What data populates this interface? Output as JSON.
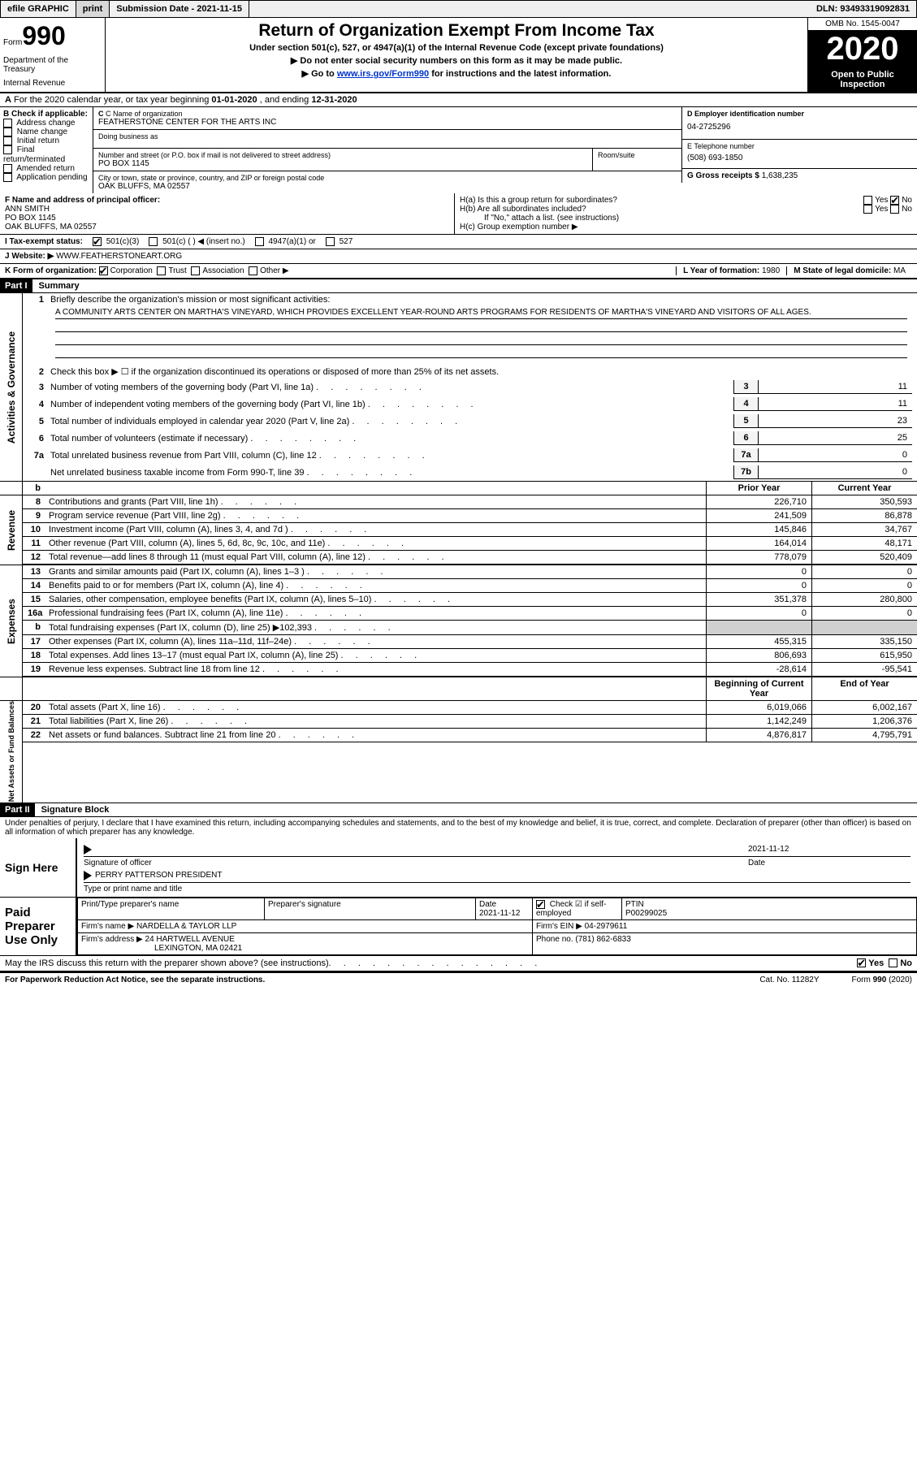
{
  "top_bar": {
    "efile": "efile GRAPHIC",
    "print": "print",
    "sub_date_label": "Submission Date - ",
    "sub_date": "2021-11-15",
    "dln_label": "DLN: ",
    "dln": "93493319092831"
  },
  "header": {
    "form_label": "Form",
    "form_num": "990",
    "dept1": "Department of the Treasury",
    "dept2": "Internal Revenue",
    "title": "Return of Organization Exempt From Income Tax",
    "subtitle": "Under section 501(c), 527, or 4947(a)(1) of the Internal Revenue Code (except private foundations)",
    "warn1": "Do not enter social security numbers on this form as it may be made public.",
    "warn2_a": "Go to ",
    "warn2_link": "www.irs.gov/Form990",
    "warn2_b": " for instructions and the latest information.",
    "omb": "OMB No. 1545-0047",
    "year": "2020",
    "inspect": "Open to Public Inspection"
  },
  "line_a": {
    "prefix": "A",
    "text_a": "For the 2020 calendar year, or tax year beginning ",
    "begin": "01-01-2020",
    "text_b": "  , and ending ",
    "end": "12-31-2020"
  },
  "block_b": {
    "header": "B Check if applicable:",
    "opts": [
      "Address change",
      "Name change",
      "Initial return",
      "Final return/terminated",
      "Amended return",
      "Application pending"
    ],
    "c_label": "C Name of organization",
    "c_name": "FEATHERSTONE CENTER FOR THE ARTS INC",
    "dba_label": "Doing business as",
    "addr_label": "Number and street (or P.O. box if mail is not delivered to street address)",
    "room_label": "Room/suite",
    "addr": "PO BOX 1145",
    "city_label": "City or town, state or province, country, and ZIP or foreign postal code",
    "city": "OAK BLUFFS, MA  02557",
    "d_label": "D Employer identification number",
    "d_val": "04-2725296",
    "e_label": "E Telephone number",
    "e_val": "(508) 693-1850",
    "g_label": "G Gross receipts $ ",
    "g_val": "1,638,235"
  },
  "block_f": {
    "f_label": "F Name and address of principal officer:",
    "f_name": "ANN SMITH",
    "f_addr1": "PO BOX 1145",
    "f_addr2": "OAK BLUFFS, MA  02557",
    "ha_label": "H(a)  Is this a group return for subordinates?",
    "hb_label": "H(b)  Are all subordinates included?",
    "h_note": "If \"No,\" attach a list. (see instructions)",
    "hc_label": "H(c)  Group exemption number ▶",
    "yes": "Yes",
    "no": "No"
  },
  "row_i": {
    "label": "I  Tax-exempt status:",
    "opts": [
      "501(c)(3)",
      "501(c) (  ) ◀ (insert no.)",
      "4947(a)(1) or",
      "527"
    ]
  },
  "row_j": {
    "label": "J  Website: ▶",
    "val": "  WWW.FEATHERSTONEART.ORG"
  },
  "row_k": {
    "label": "K Form of organization:",
    "opts": [
      "Corporation",
      "Trust",
      "Association",
      "Other ▶"
    ],
    "l_label": "L Year of formation: ",
    "l_val": "1980",
    "m_label": "M State of legal domicile: ",
    "m_val": "MA"
  },
  "part1": {
    "tag": "Part I",
    "title": "Summary",
    "l1a": "Briefly describe the organization's mission or most significant activities:",
    "l1b": "A COMMUNITY ARTS CENTER ON MARTHA'S VINEYARD, WHICH PROVIDES EXCELLENT YEAR-ROUND ARTS PROGRAMS FOR RESIDENTS OF MARTHA'S VINEYARD AND VISITORS OF ALL AGES.",
    "l2": "Check this box ▶ ☐  if the organization discontinued its operations or disposed of more than 25% of its net assets.",
    "rows_simple": [
      {
        "n": "3",
        "t": "Number of voting members of the governing body (Part VI, line 1a)",
        "k": "3",
        "v": "11"
      },
      {
        "n": "4",
        "t": "Number of independent voting members of the governing body (Part VI, line 1b)",
        "k": "4",
        "v": "11"
      },
      {
        "n": "5",
        "t": "Total number of individuals employed in calendar year 2020 (Part V, line 2a)",
        "k": "5",
        "v": "23"
      },
      {
        "n": "6",
        "t": "Total number of volunteers (estimate if necessary)",
        "k": "6",
        "v": "25"
      },
      {
        "n": "7a",
        "t": "Total unrelated business revenue from Part VIII, column (C), line 12",
        "k": "7a",
        "v": "0"
      },
      {
        "n": "",
        "t": "Net unrelated business taxable income from Form 990-T, line 39",
        "k": "7b",
        "v": "0"
      }
    ],
    "col_head_prior": "Prior Year",
    "col_head_curr": "Current Year",
    "revenue_tab": "Revenue",
    "expenses_tab": "Expenses",
    "netassets_tab": "Net Assets or Fund Balances",
    "actgov_tab": "Activities & Governance",
    "rows_rev": [
      {
        "n": "8",
        "t": "Contributions and grants (Part VIII, line 1h)",
        "p": "226,710",
        "c": "350,593"
      },
      {
        "n": "9",
        "t": "Program service revenue (Part VIII, line 2g)",
        "p": "241,509",
        "c": "86,878"
      },
      {
        "n": "10",
        "t": "Investment income (Part VIII, column (A), lines 3, 4, and 7d )",
        "p": "145,846",
        "c": "34,767"
      },
      {
        "n": "11",
        "t": "Other revenue (Part VIII, column (A), lines 5, 6d, 8c, 9c, 10c, and 11e)",
        "p": "164,014",
        "c": "48,171"
      },
      {
        "n": "12",
        "t": "Total revenue—add lines 8 through 11 (must equal Part VIII, column (A), line 12)",
        "p": "778,079",
        "c": "520,409"
      }
    ],
    "rows_exp": [
      {
        "n": "13",
        "t": "Grants and similar amounts paid (Part IX, column (A), lines 1–3 )",
        "p": "0",
        "c": "0"
      },
      {
        "n": "14",
        "t": "Benefits paid to or for members (Part IX, column (A), line 4)",
        "p": "0",
        "c": "0"
      },
      {
        "n": "15",
        "t": "Salaries, other compensation, employee benefits (Part IX, column (A), lines 5–10)",
        "p": "351,378",
        "c": "280,800"
      },
      {
        "n": "16a",
        "t": "Professional fundraising fees (Part IX, column (A), line 11e)",
        "p": "0",
        "c": "0"
      },
      {
        "n": "b",
        "t": "Total fundraising expenses (Part IX, column (D), line 25) ▶102,393",
        "p": "GREY",
        "c": "GREY"
      },
      {
        "n": "17",
        "t": "Other expenses (Part IX, column (A), lines 11a–11d, 11f–24e)",
        "p": "455,315",
        "c": "335,150"
      },
      {
        "n": "18",
        "t": "Total expenses. Add lines 13–17 (must equal Part IX, column (A), line 25)",
        "p": "806,693",
        "c": "615,950"
      },
      {
        "n": "19",
        "t": "Revenue less expenses. Subtract line 18 from line 12",
        "p": "-28,614",
        "c": "-95,541"
      }
    ],
    "col_head_begin": "Beginning of Current Year",
    "col_head_end": "End of Year",
    "rows_net": [
      {
        "n": "20",
        "t": "Total assets (Part X, line 16)",
        "p": "6,019,066",
        "c": "6,002,167"
      },
      {
        "n": "21",
        "t": "Total liabilities (Part X, line 26)",
        "p": "1,142,249",
        "c": "1,206,376"
      },
      {
        "n": "22",
        "t": "Net assets or fund balances. Subtract line 21 from line 20",
        "p": "4,876,817",
        "c": "4,795,791"
      }
    ]
  },
  "part2": {
    "tag": "Part II",
    "title": "Signature Block",
    "decl": "Under penalties of perjury, I declare that I have examined this return, including accompanying schedules and statements, and to the best of my knowledge and belief, it is true, correct, and complete. Declaration of preparer (other than officer) is based on all information of which preparer has any knowledge.",
    "sign_here": "Sign Here",
    "sig_officer": "Signature of officer",
    "sig_date_label": "Date",
    "sig_date": "2021-11-12",
    "officer_name": "PERRY PATTERSON  PRESIDENT",
    "officer_type": "Type or print name and title",
    "paid_prep": "Paid Preparer Use Only",
    "prep_name_label": "Print/Type preparer's name",
    "prep_sig_label": "Preparer's signature",
    "prep_date_label": "Date",
    "prep_date": "2021-11-12",
    "self_emp_label": "Check ☑ if self-employed",
    "ptin_label": "PTIN",
    "ptin": "P00299025",
    "firm_name_label": "Firm's name    ▶ ",
    "firm_name": "NARDELLA & TAYLOR LLP",
    "firm_ein_label": "Firm's EIN ▶ ",
    "firm_ein": "04-2979611",
    "firm_addr_label": "Firm's address ▶ ",
    "firm_addr1": "24 HARTWELL AVENUE",
    "firm_addr2": "LEXINGTON, MA  02421",
    "firm_phone_label": "Phone no. ",
    "firm_phone": "(781) 862-6833",
    "discuss": "May the IRS discuss this return with the preparer shown above? (see instructions)",
    "yes": "Yes",
    "no": "No"
  },
  "footer": {
    "pra": "For Paperwork Reduction Act Notice, see the separate instructions.",
    "cat": "Cat. No. 11282Y",
    "form": "Form 990 (2020)"
  }
}
